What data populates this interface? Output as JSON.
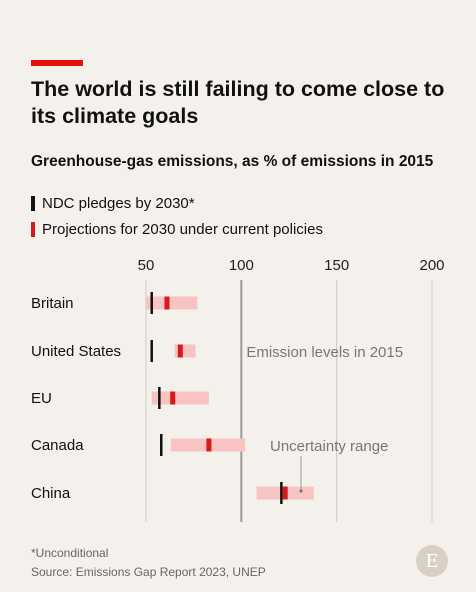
{
  "header": {
    "title": "The world is still failing to come close to its climate goals",
    "subtitle": "Greenhouse-gas emissions, as % of emissions in 2015"
  },
  "legend": {
    "pledge_label": "NDC pledges by 2030*",
    "projection_label": "Projections for 2030 under current policies"
  },
  "colors": {
    "accent": "#e3120b",
    "pledge": "#111111",
    "projection": "#d7191c",
    "uncertainty": "#f7c4c2",
    "reference": "#9a9a9a"
  },
  "chart_data": {
    "type": "range",
    "x_ticks": [
      50,
      100,
      150,
      200
    ],
    "xlim": [
      50,
      200
    ],
    "reference_value": 100,
    "reference_label": "Emission levels in 2015",
    "uncertainty_label": "Uncertainty range",
    "categories": [
      "Britain",
      "United States",
      "EU",
      "Canada",
      "China"
    ],
    "series": [
      {
        "name": "NDC pledges by 2030*",
        "values": [
          53,
          53,
          57,
          58,
          121
        ]
      },
      {
        "name": "Projections for 2030 under current policies",
        "values": [
          61,
          68,
          64,
          83,
          123
        ]
      }
    ],
    "uncertainty_ranges": [
      [
        50,
        77
      ],
      [
        65,
        76
      ],
      [
        53,
        83
      ],
      [
        63,
        102
      ],
      [
        108,
        138
      ]
    ],
    "grid": true
  },
  "footer": {
    "footnote": "*Unconditional",
    "source": "Source: Emissions Gap Report 2023, UNEP",
    "logo_letter": "E"
  }
}
